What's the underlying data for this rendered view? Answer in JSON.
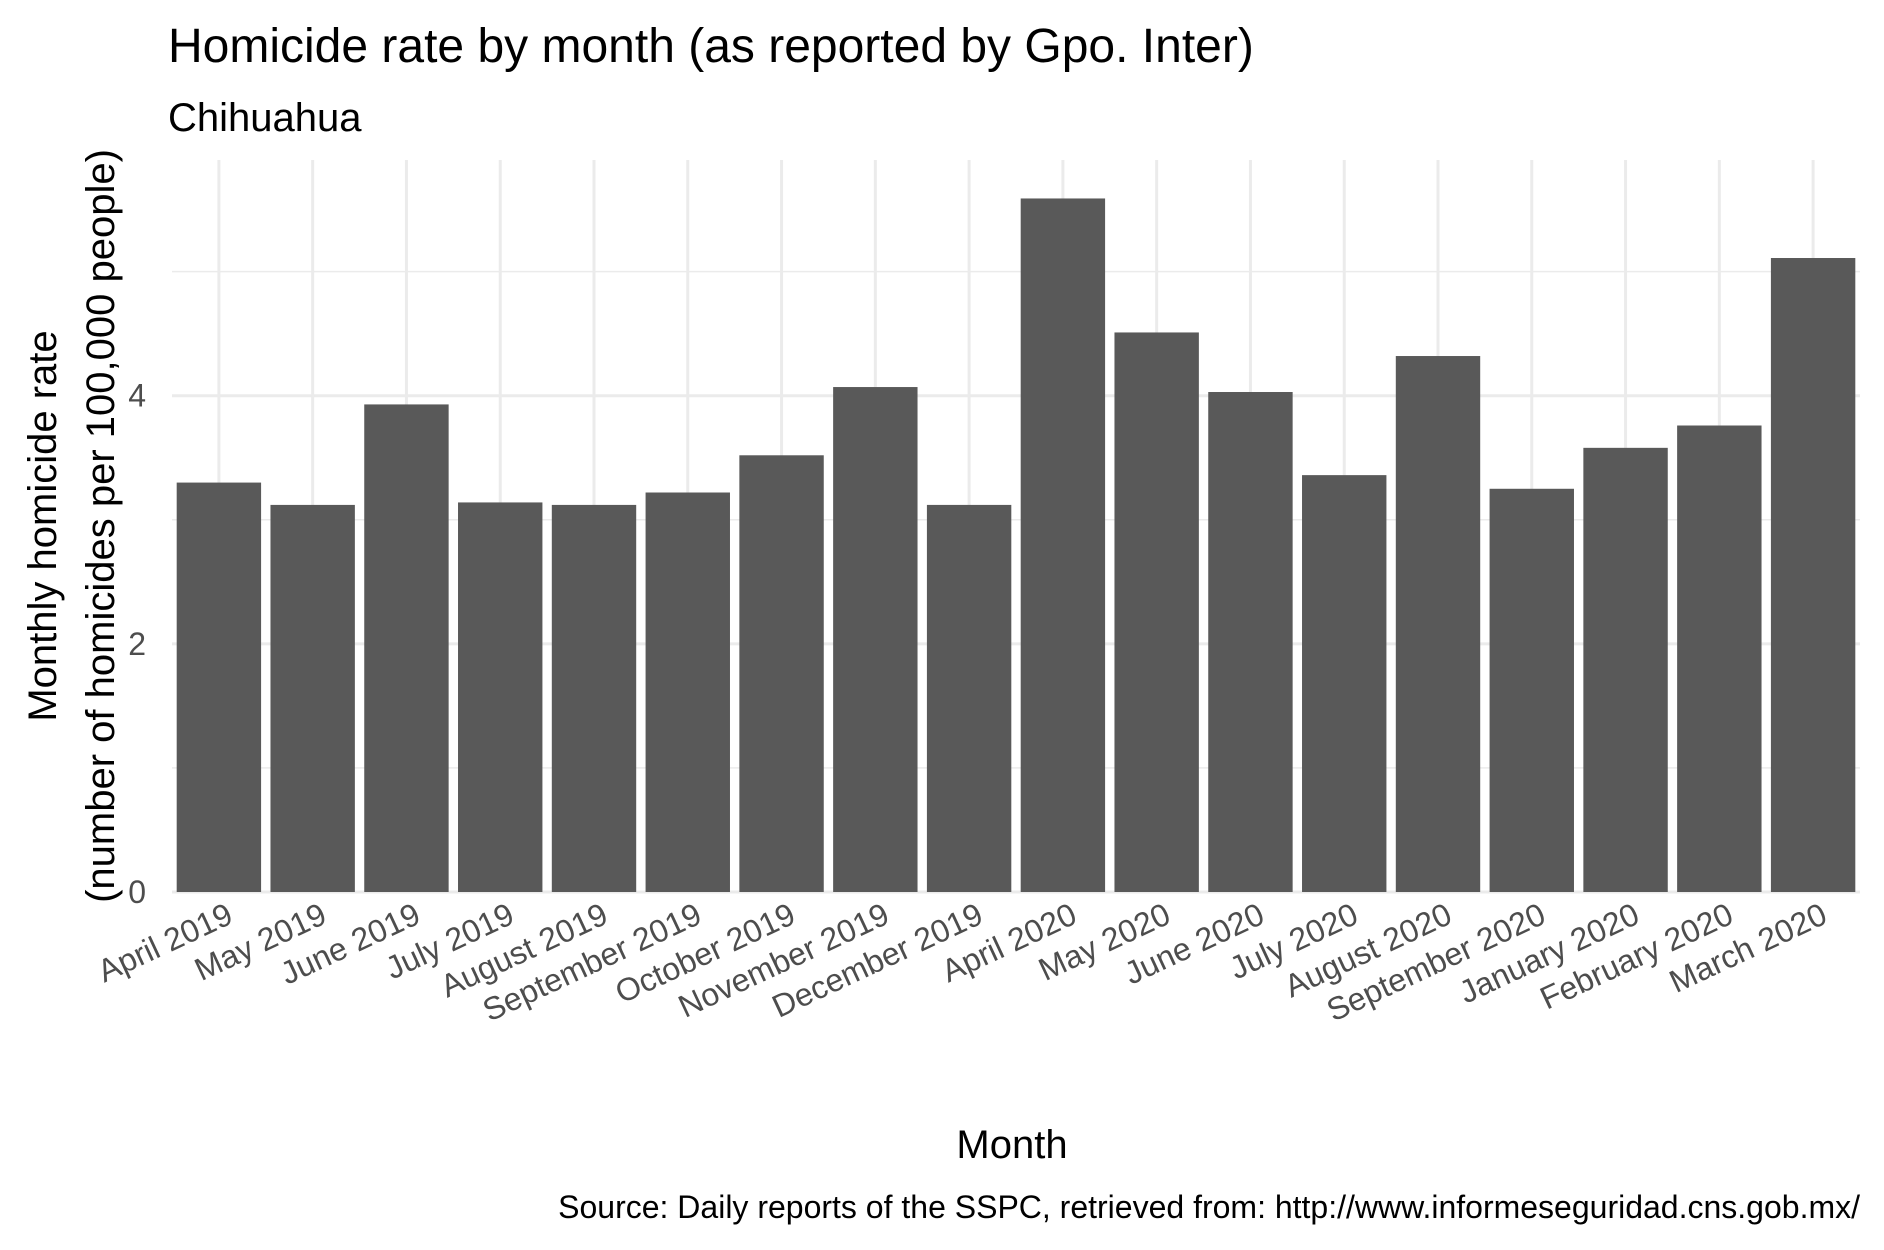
{
  "chart_data": {
    "type": "bar",
    "title": "Homicide rate by month (as reported by Gpo. Inter)",
    "subtitle": "Chihuahua",
    "xlabel": "Month",
    "ylabel_line1": "Monthly homicide rate",
    "ylabel_line2": "(number of homicides per 100,000 people)",
    "caption": "Source: Daily reports of the SSPC, retrieved from: http://www.informeseguridad.cns.gob.mx/",
    "categories": [
      "April 2019",
      "May 2019",
      "June 2019",
      "July 2019",
      "August 2019",
      "September 2019",
      "October 2019",
      "November 2019",
      "December 2019",
      "April 2020",
      "May 2020",
      "June 2020",
      "July 2020",
      "August 2020",
      "September 2020",
      "January 2020",
      "February 2020",
      "March 2020"
    ],
    "values": [
      3.3,
      3.12,
      3.93,
      3.14,
      3.12,
      3.22,
      3.52,
      4.07,
      3.12,
      5.59,
      4.51,
      4.03,
      3.36,
      4.32,
      3.25,
      3.58,
      3.76,
      5.11
    ],
    "ylim": [
      0,
      5.9
    ],
    "yticks": [
      0,
      2,
      4
    ],
    "grid": true,
    "legend": "none",
    "bar_color": "#595959",
    "grid_color": "#ebebeb"
  }
}
